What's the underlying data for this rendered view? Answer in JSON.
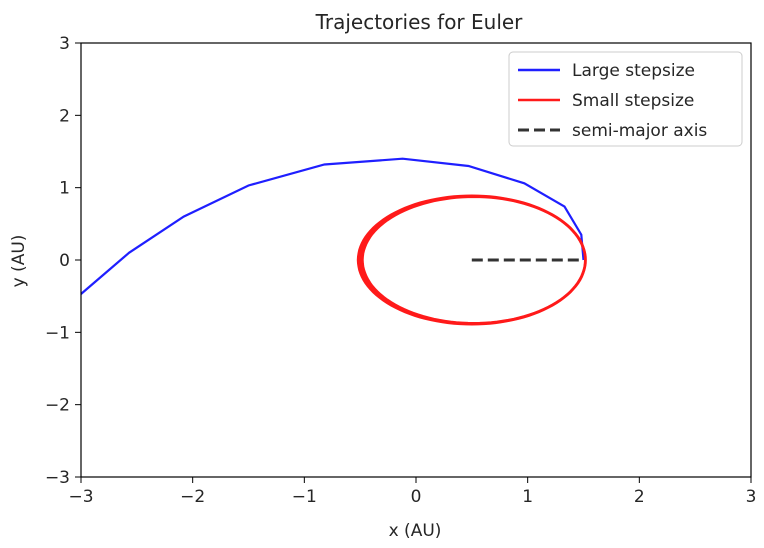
{
  "chart_data": {
    "type": "line",
    "title": "Trajectories for Euler",
    "xlabel": "x (AU)",
    "ylabel": "y (AU)",
    "xlim": [
      -3,
      3
    ],
    "ylim": [
      -3,
      3
    ],
    "xticks": [
      -3,
      -2,
      -1,
      0,
      1,
      2,
      3
    ],
    "yticks": [
      -3,
      -2,
      -1,
      0,
      1,
      2,
      3
    ],
    "xtick_labels": [
      "−3",
      "−2",
      "−1",
      "0",
      "1",
      "2",
      "3"
    ],
    "ytick_labels": [
      "−3",
      "−2",
      "−1",
      "0",
      "1",
      "2",
      "3"
    ],
    "grid": false,
    "legend_position": "top-right",
    "series": [
      {
        "name": "Large stepsize",
        "color": "#1f1fff",
        "style": "solid",
        "x": [
          1.5,
          1.48,
          1.33,
          0.97,
          0.47,
          -0.12,
          -0.82,
          -1.5,
          -2.08,
          -2.57,
          -3.0
        ],
        "y": [
          0.0,
          0.35,
          0.74,
          1.06,
          1.3,
          1.4,
          1.32,
          1.03,
          0.6,
          0.1,
          -0.47
        ]
      },
      {
        "name": "Small stepsize",
        "color": "#ff1a1a",
        "style": "solid",
        "shape": "ellipse",
        "center": [
          0.5,
          0.0
        ],
        "semi_axes": [
          1.02,
          0.89
        ]
      },
      {
        "name": "semi-major axis",
        "color": "#333333",
        "style": "dashed",
        "x": [
          0.5,
          1.5
        ],
        "y": [
          0.0,
          0.0
        ]
      }
    ]
  }
}
